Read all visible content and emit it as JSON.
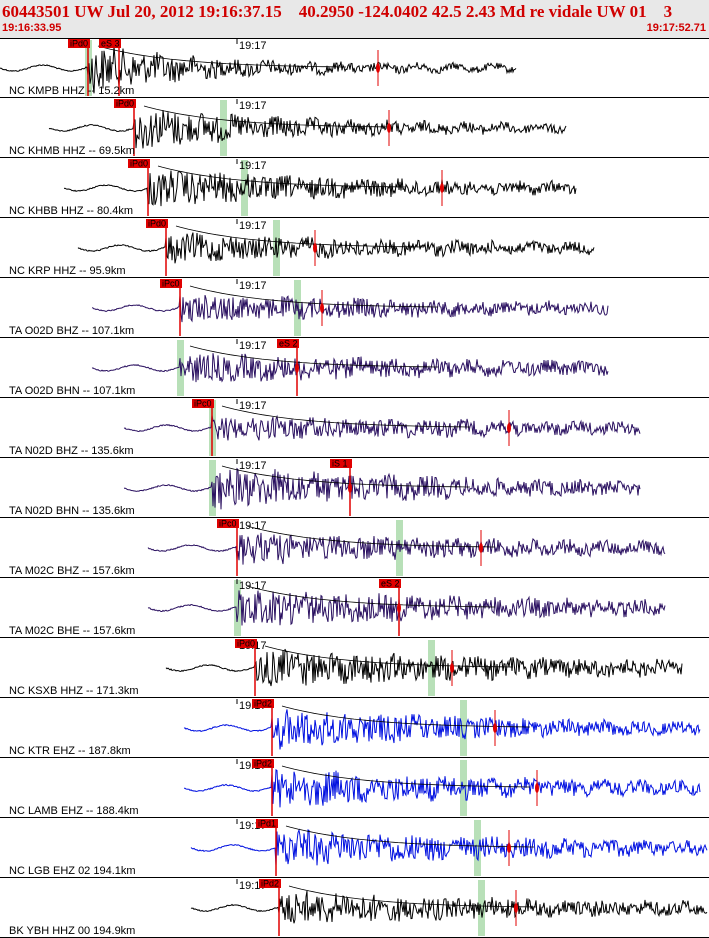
{
  "header": {
    "title": "60443501 UW Jul 20, 2012 19:16:37.15    40.2950 -124.0402 42.5 2.43 Md re vidale UW 01    3",
    "start_time": "19:16:33.95",
    "end_time": "19:17:52.71"
  },
  "colors": {
    "header_bg": "#e8e8e8",
    "header_text": "#d00000",
    "pick_red": "#e00000",
    "shade": "#b8e0b8",
    "fit_line": "#000000"
  },
  "chart_data": {
    "type": "seismogram-record-section",
    "time_range": [
      "19:16:33.95",
      "19:17:52.71"
    ],
    "minute_tick": "19:17",
    "traces": [
      {
        "label": "NC KMPB HHZ -- 15.2km",
        "color": "#000000",
        "picks": [
          "iPd0",
          "eS 3"
        ],
        "pick_x": [
          0.125,
          0.168
        ],
        "trace_start": 0.0,
        "trace_end": 0.73,
        "onset": 0.125,
        "max_amp": 0.85,
        "dur": 0.15,
        "shade_x": 0.125,
        "amp_x": 0.535
      },
      {
        "label": "NC KHMB HHZ -- 69.5km",
        "color": "#000000",
        "picks": [
          "iPd0"
        ],
        "pick_x": [
          0.19
        ],
        "trace_start": 0.07,
        "trace_end": 0.8,
        "onset": 0.19,
        "max_amp": 0.7,
        "dur": 0.22,
        "shade_x": 0.315,
        "amp_x": 0.55
      },
      {
        "label": "NC KHBB HHZ -- 80.4km",
        "color": "#000000",
        "picks": [
          "iPd0"
        ],
        "pick_x": [
          0.21
        ],
        "trace_start": 0.09,
        "trace_end": 0.815,
        "onset": 0.21,
        "max_amp": 0.6,
        "dur": 0.32,
        "shade_x": 0.345,
        "amp_x": 0.625
      },
      {
        "label": "NC KRP HHZ -- 95.9km",
        "color": "#000000",
        "picks": [
          "iPd0"
        ],
        "pick_x": [
          0.235
        ],
        "trace_start": 0.11,
        "trace_end": 0.84,
        "onset": 0.235,
        "max_amp": 0.45,
        "dur": 0.35,
        "shade_x": 0.39,
        "amp_x": 0.445
      },
      {
        "label": "TA O02D BHZ -- 107.1km",
        "color": "#2a1060",
        "picks": [
          "iPc0"
        ],
        "pick_x": [
          0.255
        ],
        "trace_start": 0.13,
        "trace_end": 0.86,
        "onset": 0.255,
        "max_amp": 0.42,
        "dur": 0.4,
        "shade_x": 0.42,
        "amp_x": 0.455
      },
      {
        "label": "TA O02D BHN -- 107.1km",
        "color": "#2a1060",
        "picks": [
          "eS 2"
        ],
        "pick_x": [
          0.42
        ],
        "trace_start": 0.13,
        "trace_end": 0.86,
        "onset": 0.255,
        "max_amp": 0.45,
        "dur": 0.45,
        "shade_x": 0.255,
        "amp_x": 0.42
      },
      {
        "label": "TA N02D BHZ -- 135.6km",
        "color": "#2a1060",
        "picks": [
          "iPc0"
        ],
        "pick_x": [
          0.3
        ],
        "trace_start": 0.175,
        "trace_end": 0.905,
        "onset": 0.3,
        "max_amp": 0.38,
        "dur": 0.45,
        "shade_x": 0.3,
        "amp_x": 0.72
      },
      {
        "label": "TA N02D BHN -- 135.6km",
        "color": "#2a1060",
        "picks": [
          "iS 1"
        ],
        "pick_x": [
          0.495
        ],
        "trace_start": 0.175,
        "trace_end": 0.905,
        "onset": 0.3,
        "max_amp": 0.7,
        "dur": 0.35,
        "shade_x": 0.3,
        "amp_x": 0.495
      },
      {
        "label": "TA M02C BHZ -- 157.6km",
        "color": "#2a1060",
        "picks": [
          "iPc0"
        ],
        "pick_x": [
          0.335
        ],
        "trace_start": 0.21,
        "trace_end": 0.94,
        "onset": 0.335,
        "max_amp": 0.5,
        "dur": 0.42,
        "shade_x": 0.565,
        "amp_x": 0.68
      },
      {
        "label": "TA M02C BHE -- 157.6km",
        "color": "#2a1060",
        "picks": [
          "eS 2"
        ],
        "pick_x": [
          0.565
        ],
        "trace_start": 0.21,
        "trace_end": 0.94,
        "onset": 0.335,
        "max_amp": 0.6,
        "dur": 0.45,
        "shade_x": 0.335,
        "amp_x": 0.565
      },
      {
        "label": "NC KSXB HHZ -- 171.3km",
        "color": "#000000",
        "picks": [
          "iPd0"
        ],
        "pick_x": [
          0.36
        ],
        "trace_start": 0.235,
        "trace_end": 0.965,
        "onset": 0.36,
        "max_amp": 0.6,
        "dur": 0.45,
        "shade_x": 0.61,
        "amp_x": 0.64
      },
      {
        "label": "NC KTR EHZ -- 187.8km",
        "color": "#0010e0",
        "picks": [
          "iPd2"
        ],
        "pick_x": [
          0.385
        ],
        "trace_start": 0.26,
        "trace_end": 0.99,
        "onset": 0.385,
        "max_amp": 0.7,
        "dur": 0.3,
        "shade_x": 0.655,
        "amp_x": 0.7
      },
      {
        "label": "NC LAMB EHZ -- 188.4km",
        "color": "#0010e0",
        "picks": [
          "iPd2"
        ],
        "pick_x": [
          0.385
        ],
        "trace_start": 0.26,
        "trace_end": 0.99,
        "onset": 0.385,
        "max_amp": 0.65,
        "dur": 0.35,
        "shade_x": 0.655,
        "amp_x": 0.76
      },
      {
        "label": "NC LGB EHZ 02 194.1km",
        "color": "#0010e0",
        "picks": [
          "iPd1"
        ],
        "pick_x": [
          0.39
        ],
        "trace_start": 0.27,
        "trace_end": 1.0,
        "onset": 0.39,
        "max_amp": 0.6,
        "dur": 0.4,
        "shade_x": 0.675,
        "amp_x": 0.72
      },
      {
        "label": "BK YBH HHZ 00 194.9km",
        "color": "#000000",
        "picks": [
          "iPd2"
        ],
        "pick_x": [
          0.395
        ],
        "trace_start": 0.27,
        "trace_end": 1.0,
        "onset": 0.395,
        "max_amp": 0.55,
        "dur": 0.4,
        "shade_x": 0.68,
        "amp_x": 0.73
      }
    ]
  }
}
